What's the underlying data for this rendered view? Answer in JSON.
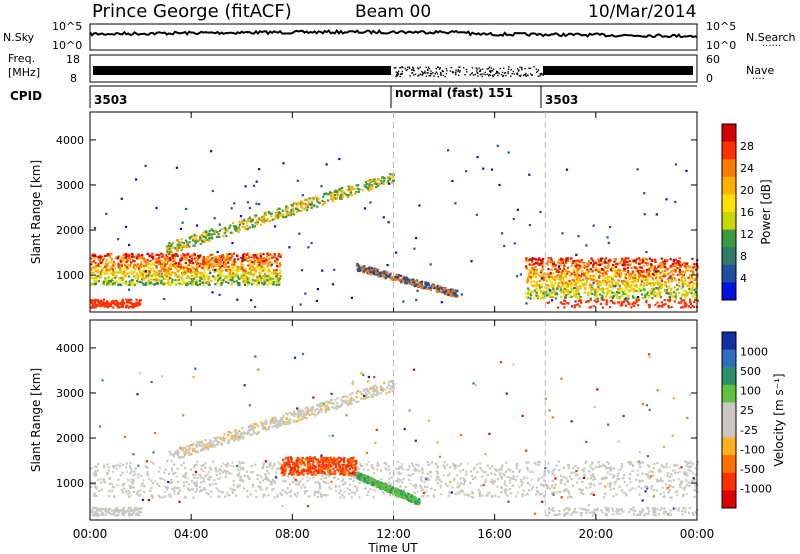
{
  "header": {
    "station": "Prince George (fitACF)",
    "beam": "Beam 00",
    "date": "10/Mar/2014"
  },
  "top_panels": {
    "nsky_label": "N.Sky",
    "nsky_ticks": [
      "10^5",
      "10^0"
    ],
    "nsearch_label": "N.Search",
    "nsearch_ticks": [
      "10^5",
      "10^0"
    ],
    "freq_label_1": "Freq.",
    "freq_label_2": "[MHz]",
    "freq_ticks": [
      "18",
      "8"
    ],
    "nave_label": "Nave",
    "nave_ticks": [
      "60",
      "0"
    ],
    "cpid_label": "CPID",
    "cpid_segments": [
      {
        "start_h": 0,
        "text": "3503"
      },
      {
        "start_h": 12,
        "text": "normal (fast) 151"
      },
      {
        "start_h": 18,
        "text": "3503"
      }
    ]
  },
  "chart_data": [
    {
      "type": "heatmap",
      "name": "power",
      "ylabel": "Slant Range [km]",
      "xlabel": "Time UT",
      "x_ticks": [
        "00:00",
        "04:00",
        "08:00",
        "12:00",
        "16:00",
        "20:00",
        "00:00"
      ],
      "x_hours": [
        0,
        4,
        8,
        12,
        16,
        20,
        24
      ],
      "y_ticks": [
        1000,
        2000,
        3000,
        4000
      ],
      "ylim": [
        180,
        4620
      ],
      "xlim": [
        0,
        24
      ],
      "colorbar_label": "Power [dB]",
      "colorbar_ticks": [
        "28",
        "24",
        "20",
        "16",
        "12",
        "8",
        "4"
      ],
      "colorbar_colors": [
        "#d50000",
        "#ff3000",
        "#ff7a00",
        "#ffb000",
        "#ffe000",
        "#c8d800",
        "#3a9a40",
        "#2f7a6a",
        "#1f4fa0",
        "#0010e0"
      ],
      "features": [
        {
          "desc": "band",
          "t0": 0,
          "t1": 7.5,
          "r0": 800,
          "r1": 1500
        },
        {
          "desc": "band",
          "t0": 17.2,
          "t1": 24,
          "r0": 500,
          "r1": 1400
        },
        {
          "desc": "arc",
          "t0": 10.5,
          "t1": 14.5,
          "r0": 600,
          "r1": 1200
        }
      ]
    },
    {
      "type": "heatmap",
      "name": "velocity",
      "ylabel": "Slant Range [km]",
      "xlabel": "Time UT",
      "x_ticks": [
        "00:00",
        "04:00",
        "08:00",
        "12:00",
        "16:00",
        "20:00",
        "00:00"
      ],
      "x_hours": [
        0,
        4,
        8,
        12,
        16,
        20,
        24
      ],
      "y_ticks": [
        1000,
        2000,
        3000,
        4000
      ],
      "ylim": [
        180,
        4620
      ],
      "xlim": [
        0,
        24
      ],
      "colorbar_label": "Velocity [m s⁻¹]",
      "colorbar_ticks": [
        "1000",
        "500",
        "100",
        "25",
        "-25",
        "-100",
        "-500",
        "-1000"
      ],
      "colorbar_colors": [
        "#1030a0",
        "#2f6fc0",
        "#2f8f6a",
        "#60c040",
        "#c8c8c0",
        "#c8c8c0",
        "#ffb020",
        "#ff7000",
        "#ff3000",
        "#e00000"
      ],
      "features": [
        {
          "desc": "ground scatter band",
          "t0": 0,
          "t1": 24,
          "r0": 700,
          "r1": 1500
        },
        {
          "desc": "red arc",
          "t0": 7.5,
          "t1": 10.5,
          "r0": 1200,
          "r1": 1600
        },
        {
          "desc": "green arc",
          "t0": 10.5,
          "t1": 13,
          "r0": 600,
          "r1": 1200
        }
      ]
    }
  ]
}
